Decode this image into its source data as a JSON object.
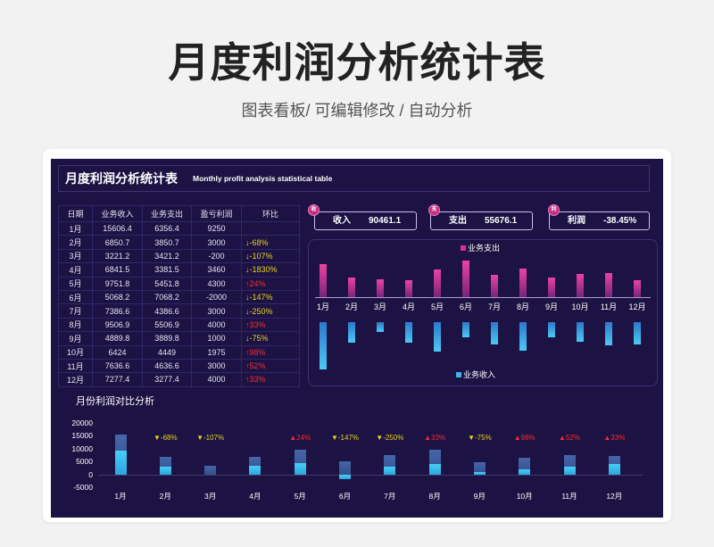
{
  "page": {
    "title": "月度利润分析统计表",
    "subtitle": "图表看板/ 可编辑修改 / 自动分析"
  },
  "dashboard": {
    "header": {
      "title": "月度利润分析统计表",
      "subtitle_en": "Monthly profit analysis statistical table"
    },
    "table": {
      "columns": [
        "日期",
        "业务收入",
        "业务支出",
        "盈亏利润",
        "环比"
      ],
      "rows": [
        {
          "month": "1月",
          "income": "15606.4",
          "expense": "6356.4",
          "profit": "9250",
          "mom": "",
          "mom_color": ""
        },
        {
          "month": "2月",
          "income": "6850.7",
          "expense": "3850.7",
          "profit": "3000",
          "mom": "↓-68%",
          "mom_color": "#e8d41a"
        },
        {
          "month": "3月",
          "income": "3221.2",
          "expense": "3421.2",
          "profit": "-200",
          "mom": "↓-107%",
          "mom_color": "#e8d41a"
        },
        {
          "month": "4月",
          "income": "6841.5",
          "expense": "3381.5",
          "profit": "3460",
          "mom": "↓-1830%",
          "mom_color": "#e8d41a"
        },
        {
          "month": "5月",
          "income": "9751.8",
          "expense": "5451.8",
          "profit": "4300",
          "mom": "↑24%",
          "mom_color": "#ff2d2d"
        },
        {
          "month": "6月",
          "income": "5068.2",
          "expense": "7068.2",
          "profit": "-2000",
          "mom": "↓-147%",
          "mom_color": "#e8d41a"
        },
        {
          "month": "7月",
          "income": "7386.6",
          "expense": "4386.6",
          "profit": "3000",
          "mom": "↓-250%",
          "mom_color": "#e8d41a"
        },
        {
          "month": "8月",
          "income": "9506.9",
          "expense": "5506.9",
          "profit": "4000",
          "mom": "↑33%",
          "mom_color": "#ff2d2d"
        },
        {
          "month": "9月",
          "income": "4889.8",
          "expense": "3889.8",
          "profit": "1000",
          "mom": "↓-75%",
          "mom_color": "#e8d41a"
        },
        {
          "month": "10月",
          "income": "6424",
          "expense": "4449",
          "profit": "1975",
          "mom": "↑98%",
          "mom_color": "#ff2d2d"
        },
        {
          "month": "11月",
          "income": "7636.6",
          "expense": "4636.6",
          "profit": "3000",
          "mom": "↑52%",
          "mom_color": "#ff2d2d"
        },
        {
          "month": "12月",
          "income": "7277.4",
          "expense": "3277.4",
          "profit": "4000",
          "mom": "↑33%",
          "mom_color": "#ff2d2d"
        }
      ]
    },
    "kpis": [
      {
        "icon": "收",
        "label": "收入",
        "value": "90461.1"
      },
      {
        "icon": "支",
        "label": "支出",
        "value": "55676.1"
      },
      {
        "icon": "利",
        "label": "利润",
        "value": "-38.45%"
      }
    ],
    "colors": {
      "page_background": "#f2f2f2",
      "panel_background": "#1c1243",
      "text": "#ffffff",
      "decrease": "#e8d41a",
      "increase": "#ff2d2d",
      "kpi_icon": "#c42e84"
    }
  },
  "chart_data": [
    {
      "type": "bar",
      "mirrored": true,
      "categories": [
        "1月",
        "2月",
        "3月",
        "4月",
        "5月",
        "6月",
        "7月",
        "8月",
        "9月",
        "10月",
        "11月",
        "12月"
      ],
      "series": [
        {
          "name": "业务支出",
          "values": [
            6356.4,
            3850.7,
            3421.2,
            3381.5,
            5451.8,
            7068.2,
            4386.6,
            5506.9,
            3889.8,
            4449,
            4636.6,
            3277.4
          ],
          "color": "#d9308f",
          "ylim": [
            0,
            8000
          ],
          "legend_position": "top"
        },
        {
          "name": "业务收入",
          "values": [
            15606.4,
            6850.7,
            3221.2,
            6841.5,
            9751.8,
            5068.2,
            7386.6,
            9506.9,
            4889.8,
            6424,
            7636.6,
            7277.4
          ],
          "color": "#3fb4ea",
          "ylim": [
            0,
            18000
          ],
          "legend_position": "bottom"
        }
      ],
      "grid": false
    },
    {
      "type": "bar",
      "title": "月份利润对比分析",
      "overlapping": true,
      "categories": [
        "1月",
        "2月",
        "3月",
        "4月",
        "5月",
        "6月",
        "7月",
        "8月",
        "9月",
        "10月",
        "11月",
        "12月"
      ],
      "series": [
        {
          "values": [
            15606.4,
            6850.7,
            3221.2,
            6841.5,
            9751.8,
            5068.2,
            7386.6,
            9506.9,
            4889.8,
            6424,
            7636.6,
            7277.4
          ],
          "color": "#3f5f9f"
        },
        {
          "values": [
            9250,
            3000,
            -200,
            3460,
            4300,
            -2000,
            3000,
            4000,
            1000,
            1975,
            3000,
            4000
          ],
          "color": "#3cc6f0"
        }
      ],
      "ylim": [
        -5000,
        20000
      ],
      "yticks": [
        20000,
        15000,
        10000,
        5000,
        0,
        -5000
      ],
      "annotations": [
        {
          "label": "",
          "color": ""
        },
        {
          "label": "▼-68%",
          "color": "#e6d51c"
        },
        {
          "label": "▼-107%",
          "color": "#e6d51c"
        },
        {
          "label": "",
          "color": ""
        },
        {
          "label": "▲24%",
          "color": "#ff2a2a"
        },
        {
          "label": "▼-147%",
          "color": "#e6d51c"
        },
        {
          "label": "▼-250%",
          "color": "#e6d51c"
        },
        {
          "label": "▲33%",
          "color": "#ff2a2a"
        },
        {
          "label": "▼-75%",
          "color": "#e6d51c"
        },
        {
          "label": "▲98%",
          "color": "#ff2a2a"
        },
        {
          "label": "▲52%",
          "color": "#ff2a2a"
        },
        {
          "label": "▲33%",
          "color": "#ff2a2a"
        }
      ],
      "legend": "none",
      "grid": false
    }
  ]
}
